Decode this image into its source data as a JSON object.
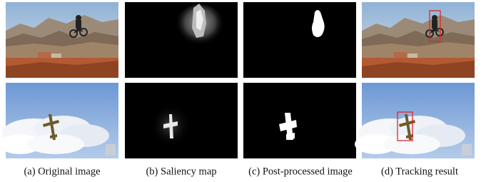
{
  "figure": {
    "captions": [
      "(a) Original image",
      "(b) Saliency map",
      "(c) Post-processed image",
      "(d) Tracking result"
    ]
  }
}
